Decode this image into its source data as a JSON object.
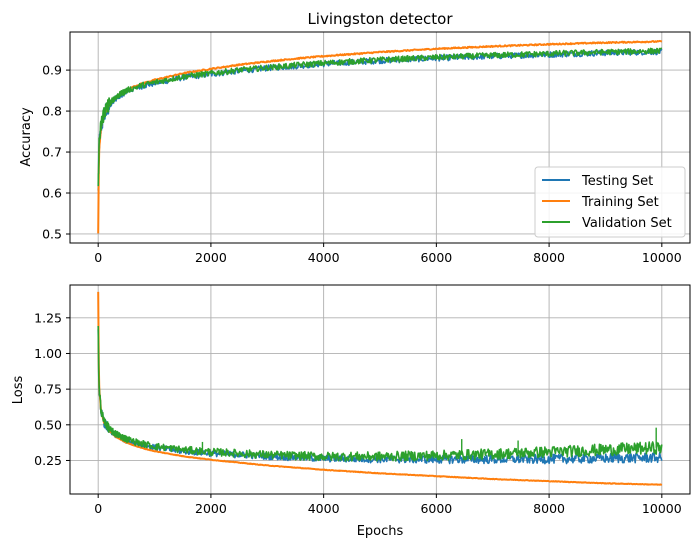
{
  "chart_data": [
    {
      "type": "line",
      "title": "Livingston detector",
      "xlabel": "",
      "ylabel": "Accuracy",
      "xlim": [
        -500,
        10500
      ],
      "ylim": [
        0.478,
        0.993
      ],
      "xticks": [
        0,
        2000,
        4000,
        6000,
        8000,
        10000
      ],
      "yticks": [
        0.5,
        0.6,
        0.7,
        0.8,
        0.9
      ],
      "ytick_labels": [
        "0.5",
        "0.6",
        "0.7",
        "0.8",
        "0.9"
      ],
      "grid": true,
      "legend": "lower-right",
      "series": [
        {
          "name": "Testing Set",
          "color": "#1f77b4",
          "x": [
            0,
            10,
            20,
            50,
            100,
            200,
            300,
            500,
            750,
            1000,
            1500,
            2000,
            2500,
            3000,
            3500,
            4000,
            5000,
            6000,
            7000,
            8000,
            9000,
            10000
          ],
          "y": [
            0.6,
            0.68,
            0.72,
            0.76,
            0.79,
            0.815,
            0.83,
            0.848,
            0.86,
            0.868,
            0.882,
            0.89,
            0.898,
            0.905,
            0.91,
            0.915,
            0.923,
            0.929,
            0.934,
            0.938,
            0.942,
            0.945
          ]
        },
        {
          "name": "Training Set",
          "color": "#ff7f0e",
          "x": [
            0,
            10,
            20,
            50,
            100,
            200,
            300,
            500,
            750,
            1000,
            1500,
            2000,
            2500,
            3000,
            3500,
            4000,
            5000,
            6000,
            7000,
            8000,
            9000,
            10000
          ],
          "y": [
            0.5,
            0.65,
            0.71,
            0.76,
            0.79,
            0.815,
            0.832,
            0.852,
            0.866,
            0.876,
            0.892,
            0.903,
            0.913,
            0.921,
            0.928,
            0.934,
            0.944,
            0.952,
            0.958,
            0.963,
            0.967,
            0.97
          ]
        },
        {
          "name": "Validation Set",
          "color": "#2ca02c",
          "x": [
            0,
            10,
            20,
            50,
            100,
            200,
            300,
            500,
            750,
            1000,
            1500,
            2000,
            2500,
            3000,
            3500,
            4000,
            5000,
            6000,
            7000,
            8000,
            9000,
            10000
          ],
          "y": [
            0.6,
            0.69,
            0.725,
            0.765,
            0.795,
            0.818,
            0.833,
            0.85,
            0.862,
            0.87,
            0.884,
            0.892,
            0.9,
            0.906,
            0.912,
            0.917,
            0.925,
            0.931,
            0.936,
            0.94,
            0.944,
            0.947
          ]
        }
      ]
    },
    {
      "type": "line",
      "title": "",
      "xlabel": "Epochs",
      "ylabel": "Loss",
      "xlim": [
        -500,
        10500
      ],
      "ylim": [
        0.015,
        1.48
      ],
      "xticks": [
        0,
        2000,
        4000,
        6000,
        8000,
        10000
      ],
      "yticks": [
        0.25,
        0.5,
        0.75,
        1.0,
        1.25
      ],
      "ytick_labels": [
        "0.25",
        "0.50",
        "0.75",
        "1.00",
        "1.25"
      ],
      "grid": true,
      "series": [
        {
          "name": "Testing Set",
          "color": "#1f77b4",
          "x": [
            0,
            10,
            20,
            50,
            100,
            200,
            300,
            500,
            750,
            1000,
            1500,
            2000,
            2500,
            3000,
            3500,
            4000,
            5000,
            6000,
            7000,
            8000,
            9000,
            10000
          ],
          "y": [
            1.2,
            0.85,
            0.72,
            0.6,
            0.52,
            0.46,
            0.43,
            0.39,
            0.36,
            0.34,
            0.315,
            0.3,
            0.29,
            0.28,
            0.272,
            0.265,
            0.26,
            0.258,
            0.258,
            0.26,
            0.265,
            0.27
          ]
        },
        {
          "name": "Training Set",
          "color": "#ff7f0e",
          "x": [
            0,
            10,
            20,
            50,
            100,
            200,
            300,
            500,
            750,
            1000,
            1500,
            2000,
            2500,
            3000,
            3500,
            4000,
            5000,
            6000,
            7000,
            8000,
            9000,
            10000
          ],
          "y": [
            1.43,
            0.95,
            0.75,
            0.6,
            0.52,
            0.46,
            0.42,
            0.375,
            0.34,
            0.315,
            0.28,
            0.255,
            0.235,
            0.215,
            0.2,
            0.185,
            0.16,
            0.14,
            0.12,
            0.105,
            0.09,
            0.08
          ]
        },
        {
          "name": "Validation Set",
          "color": "#2ca02c",
          "x": [
            0,
            10,
            20,
            50,
            100,
            200,
            300,
            500,
            750,
            1000,
            1500,
            2000,
            2500,
            3000,
            3500,
            4000,
            5000,
            6000,
            7000,
            8000,
            9000,
            10000
          ],
          "y": [
            1.2,
            0.86,
            0.73,
            0.61,
            0.53,
            0.47,
            0.44,
            0.4,
            0.37,
            0.35,
            0.325,
            0.31,
            0.3,
            0.29,
            0.283,
            0.278,
            0.278,
            0.285,
            0.295,
            0.31,
            0.325,
            0.34
          ]
        }
      ],
      "annotations_spikes": [
        {
          "x": 1850,
          "y": 0.38
        },
        {
          "x": 6450,
          "y": 0.4
        },
        {
          "x": 7450,
          "y": 0.39
        },
        {
          "x": 9900,
          "y": 0.48
        }
      ]
    }
  ]
}
